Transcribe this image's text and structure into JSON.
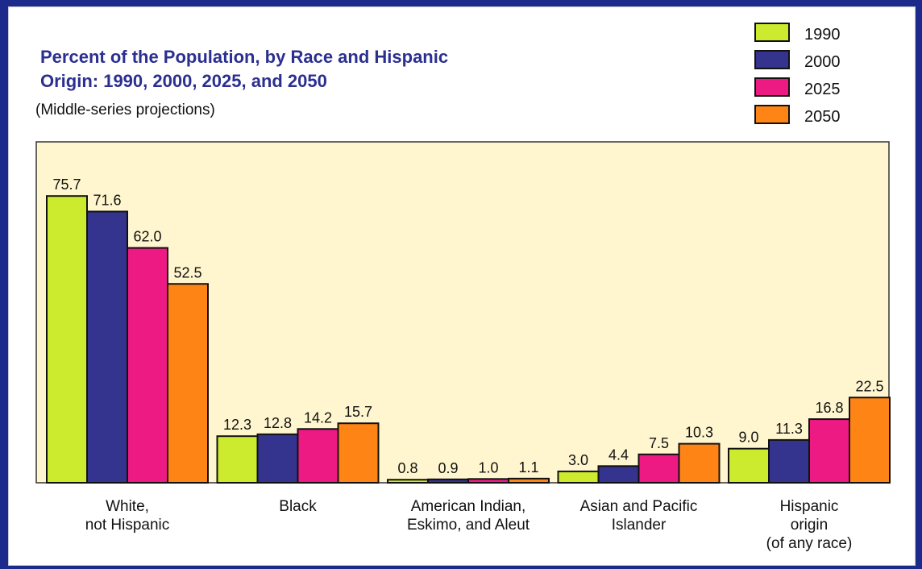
{
  "chart_data": {
    "type": "bar",
    "title": "Percent of the Population, by Race and Hispanic\nOrigin:  1990, 2000, 2025, and 2050",
    "subtitle": "(Middle-series projections)",
    "categories": [
      "White,\nnot Hispanic",
      "Black",
      "American Indian,\nEskimo, and Aleut",
      "Asian and Pacific\nIslander",
      "Hispanic\norigin\n(of any race)"
    ],
    "series": [
      {
        "name": "1990",
        "color": "#ccea2e",
        "values": [
          75.7,
          12.3,
          0.8,
          3.0,
          9.0
        ]
      },
      {
        "name": "2000",
        "color": "#34348f",
        "values": [
          71.6,
          12.8,
          0.9,
          4.4,
          11.3
        ]
      },
      {
        "name": "2025",
        "color": "#ee1a84",
        "values": [
          62.0,
          14.2,
          1.0,
          7.5,
          16.8
        ]
      },
      {
        "name": "2050",
        "color": "#ff8416",
        "values": [
          52.5,
          15.7,
          1.1,
          10.3,
          22.5
        ]
      }
    ],
    "value_labels": [
      [
        "75.7",
        "12.3",
        "0.8",
        "3.0",
        "9.0"
      ],
      [
        "71.6",
        "12.8",
        "0.9",
        "4.4",
        "11.3"
      ],
      [
        "62.0",
        "14.2",
        "1.0",
        "7.5",
        "16.8"
      ],
      [
        "52.5",
        "15.7",
        "1.1",
        "10.3",
        "22.5"
      ]
    ],
    "xlabel": "",
    "ylabel": "",
    "ylim": [
      0,
      80
    ],
    "grid": false,
    "legend": "top-right",
    "plot_background": "#fff6cf",
    "page_background": "#1c2a8c"
  }
}
